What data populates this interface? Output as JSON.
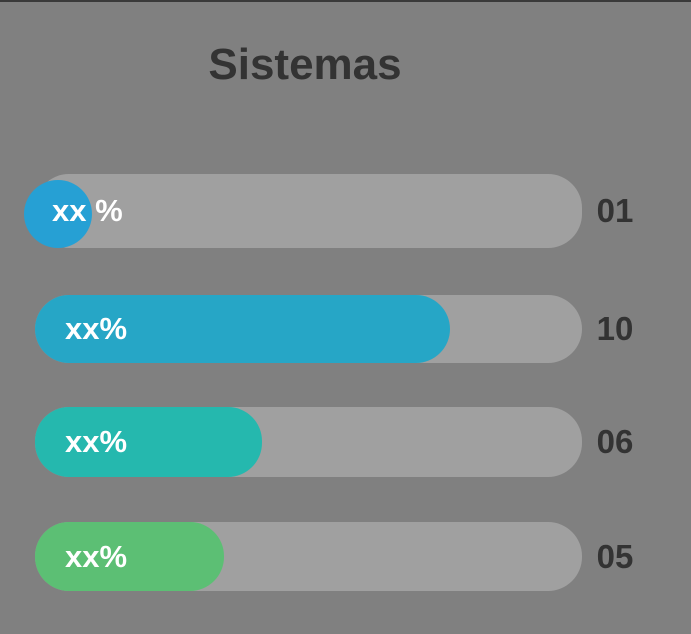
{
  "title": "Sistemas",
  "items": [
    {
      "label": "xx %",
      "count": "01"
    },
    {
      "label": "xx%",
      "count": "10"
    },
    {
      "label": "xx%",
      "count": "06"
    },
    {
      "label": "xx%",
      "count": "05"
    }
  ]
}
